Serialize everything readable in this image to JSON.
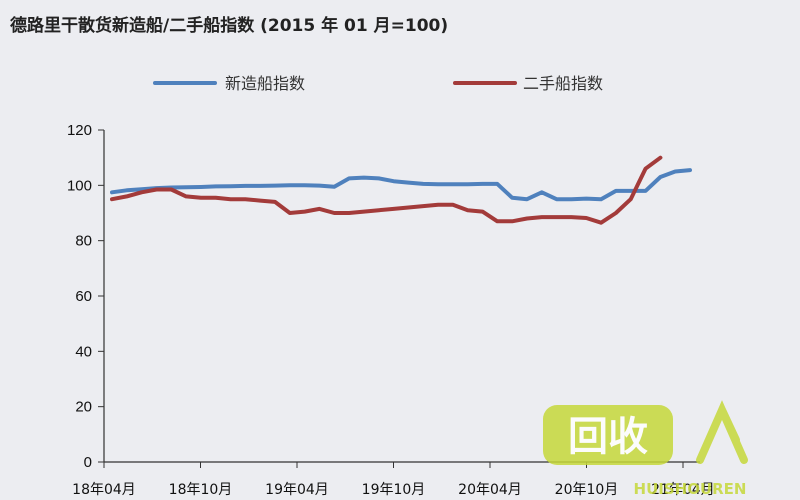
{
  "colors": {
    "new_ship": "#4f81bd",
    "second_hand": "#a33b3a",
    "watermark_green": "#c6d83a"
  },
  "chart_data": {
    "type": "line",
    "title": "德路里干散货新造船/二手船指数 (2015 年 01 月=100)",
    "xlabel": "",
    "ylabel": "",
    "ylim": [
      0,
      120
    ],
    "yticks": [
      0,
      20,
      40,
      60,
      80,
      100,
      120
    ],
    "x_tick_labels": [
      "18年04月",
      "18年10月",
      "19年04月",
      "19年10月",
      "20年04月",
      "20年10月",
      "21年04月"
    ],
    "x_index_range": [
      0,
      39
    ],
    "legend_placement": "top",
    "grid": false,
    "series": [
      {
        "name": "新造船指数",
        "color_key": "new_ship",
        "points": [
          [
            0,
            97.5
          ],
          [
            1,
            98.2
          ],
          [
            2,
            98.6
          ],
          [
            3,
            99
          ],
          [
            4,
            99.2
          ],
          [
            5,
            99.3
          ],
          [
            6,
            99.4
          ],
          [
            7,
            99.6
          ],
          [
            8,
            99.7
          ],
          [
            9,
            99.8
          ],
          [
            10,
            99.8
          ],
          [
            11,
            99.9
          ],
          [
            12,
            100
          ],
          [
            13,
            100
          ],
          [
            14,
            99.9
          ],
          [
            15,
            99.5
          ],
          [
            16,
            102.5
          ],
          [
            17,
            102.8
          ],
          [
            18,
            102.5
          ],
          [
            19,
            101.5
          ],
          [
            20,
            101
          ],
          [
            21,
            100.5
          ],
          [
            22,
            100.4
          ],
          [
            23,
            100.4
          ],
          [
            24,
            100.4
          ],
          [
            25,
            100.5
          ],
          [
            26,
            100.5
          ],
          [
            27,
            95.5
          ],
          [
            28,
            95
          ],
          [
            29,
            97.5
          ],
          [
            30,
            95
          ],
          [
            31,
            95
          ],
          [
            32,
            95.2
          ],
          [
            33,
            95
          ],
          [
            34,
            98
          ],
          [
            35,
            98
          ],
          [
            36,
            98
          ],
          [
            37,
            103
          ],
          [
            38,
            105
          ],
          [
            39,
            105.5
          ]
        ]
      },
      {
        "name": "二手船指数",
        "color_key": "second_hand",
        "points": [
          [
            0,
            95
          ],
          [
            1,
            96
          ],
          [
            2,
            97.5
          ],
          [
            3,
            98.5
          ],
          [
            4,
            98.5
          ],
          [
            5,
            96
          ],
          [
            6,
            95.5
          ],
          [
            7,
            95.5
          ],
          [
            8,
            95
          ],
          [
            9,
            95
          ],
          [
            10,
            94.5
          ],
          [
            11,
            94
          ],
          [
            12,
            90
          ],
          [
            13,
            90.5
          ],
          [
            14,
            91.5
          ],
          [
            15,
            90
          ],
          [
            16,
            90
          ],
          [
            17,
            90.5
          ],
          [
            18,
            91
          ],
          [
            19,
            91.5
          ],
          [
            20,
            92
          ],
          [
            21,
            92.5
          ],
          [
            22,
            93
          ],
          [
            23,
            93
          ],
          [
            24,
            91
          ],
          [
            25,
            90.5
          ],
          [
            26,
            87
          ],
          [
            27,
            87
          ],
          [
            28,
            88
          ],
          [
            29,
            88.5
          ],
          [
            30,
            88.5
          ],
          [
            31,
            88.5
          ],
          [
            32,
            88.2
          ],
          [
            33,
            86.5
          ],
          [
            34,
            90
          ],
          [
            35,
            95
          ],
          [
            36,
            106
          ],
          [
            37,
            110
          ]
        ]
      }
    ]
  },
  "watermark": {
    "logo_chars": "回收",
    "brand_text": "HUISHOUREN"
  }
}
